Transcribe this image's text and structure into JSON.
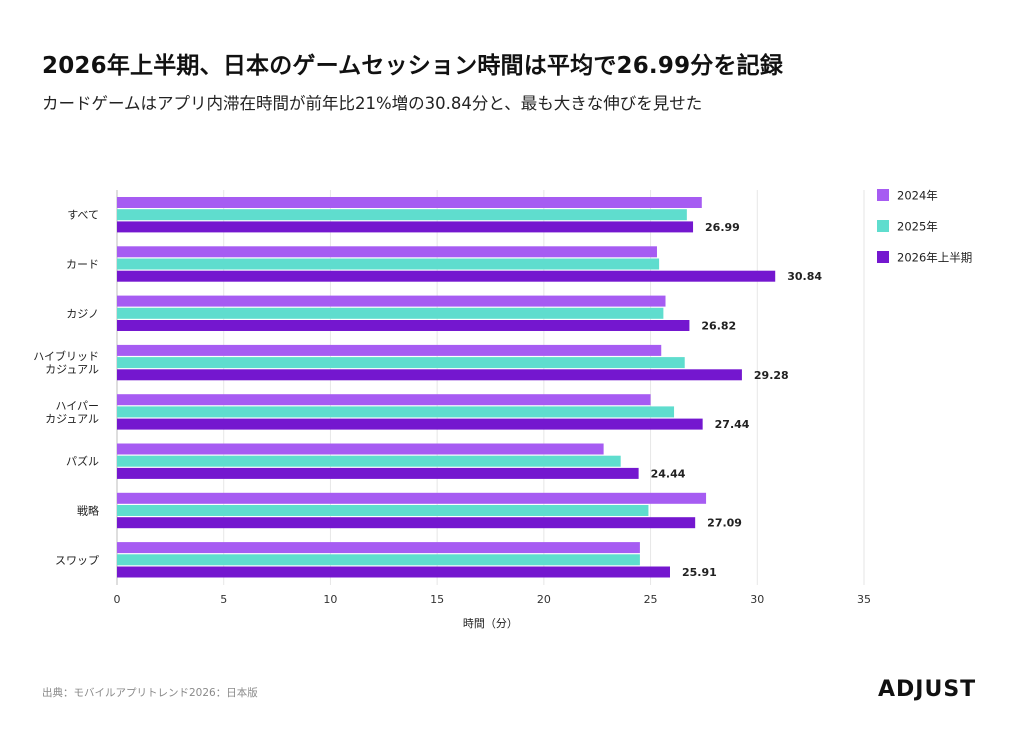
{
  "header": {
    "title": "2026年上半期、日本のゲームセッション時間は平均で26.99分を記録",
    "subtitle": "カードゲームはアプリ内滞在時間が前年比21%増の30.84分と、最も大きな伸びを見せた"
  },
  "chart_data": {
    "type": "bar",
    "orientation": "horizontal",
    "categories": [
      "すべて",
      "カード",
      "カジノ",
      "ハイブリッド\nカジュアル",
      "ハイパー\nカジュアル",
      "パズル",
      "戦略",
      "スワップ"
    ],
    "series": [
      {
        "name": "2024年",
        "color": "#a65cf2",
        "values": [
          27.4,
          25.3,
          25.7,
          25.5,
          25.0,
          22.8,
          27.6,
          24.5
        ]
      },
      {
        "name": "2025年",
        "color": "#5fddce",
        "values": [
          26.7,
          25.4,
          25.6,
          26.6,
          26.1,
          23.6,
          24.9,
          24.5
        ]
      },
      {
        "name": "2026年上半期",
        "color": "#7417cf",
        "values": [
          26.99,
          30.84,
          26.82,
          29.28,
          27.44,
          24.44,
          27.09,
          25.91
        ]
      }
    ],
    "data_labels": [
      "26.99",
      "30.84",
      "26.82",
      "29.28",
      "27.44",
      "24.44",
      "27.09",
      "25.91"
    ],
    "xlabel": "時間（分）",
    "ylabel": "",
    "xlim": [
      0,
      35
    ],
    "x_ticks": [
      "0",
      "5",
      "10",
      "15",
      "20",
      "25",
      "30",
      "35"
    ],
    "grid": "vertical",
    "legend_position": "right"
  },
  "footer": {
    "source": "出典：モバイルアプリトレンド2026：日本版",
    "brand": "ADJUST"
  }
}
